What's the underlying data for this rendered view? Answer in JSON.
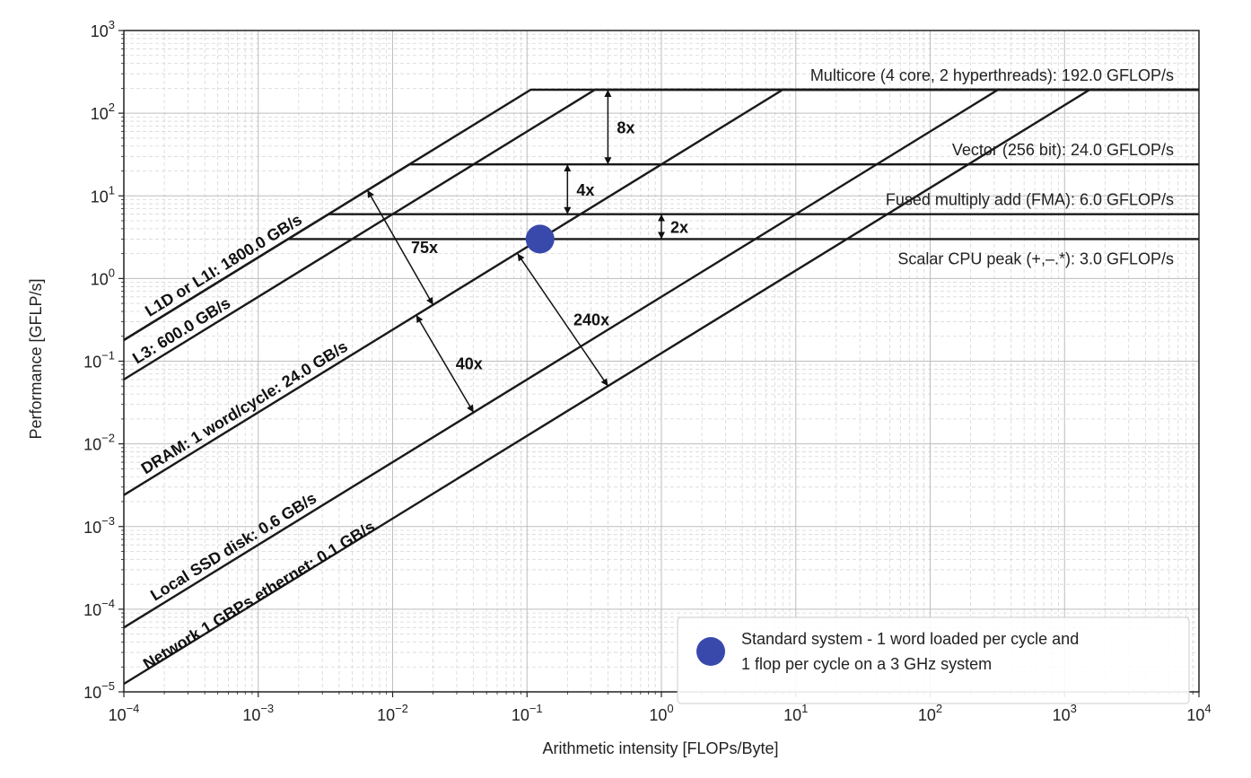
{
  "chart_data": {
    "type": "line",
    "xscale": "log",
    "yscale": "log",
    "xlim": [
      0.0001,
      10000
    ],
    "ylim": [
      1e-05,
      1000
    ],
    "xlabel": "Arithmetic intensity [FLOPs/Byte]",
    "ylabel": "Performance [GFLP/s]",
    "grid": true,
    "x_ticks": [
      {
        "value": 0.0001,
        "base": "10",
        "exp": "−4"
      },
      {
        "value": 0.001,
        "base": "10",
        "exp": "−3"
      },
      {
        "value": 0.01,
        "base": "10",
        "exp": "−2"
      },
      {
        "value": 0.1,
        "base": "10",
        "exp": "−1"
      },
      {
        "value": 1,
        "base": "10",
        "exp": "0"
      },
      {
        "value": 10,
        "base": "10",
        "exp": "1"
      },
      {
        "value": 100,
        "base": "10",
        "exp": "2"
      },
      {
        "value": 1000,
        "base": "10",
        "exp": "3"
      },
      {
        "value": 10000,
        "base": "10",
        "exp": "4"
      }
    ],
    "y_ticks": [
      {
        "value": 1e-05,
        "base": "10",
        "exp": "−5"
      },
      {
        "value": 0.0001,
        "base": "10",
        "exp": "−4"
      },
      {
        "value": 0.001,
        "base": "10",
        "exp": "−3"
      },
      {
        "value": 0.01,
        "base": "10",
        "exp": "−2"
      },
      {
        "value": 0.1,
        "base": "10",
        "exp": "−1"
      },
      {
        "value": 1,
        "base": "10",
        "exp": "0"
      },
      {
        "value": 10,
        "base": "10",
        "exp": "1"
      },
      {
        "value": 100,
        "base": "10",
        "exp": "2"
      },
      {
        "value": 1000,
        "base": "10",
        "exp": "3"
      }
    ],
    "ceilings": [
      {
        "label": "Multicore (4 core, 2 hyperthreads): 192.0 GFLOP/s",
        "value": 192.0
      },
      {
        "label": "Vector (256 bit): 24.0 GFLOP/s",
        "value": 24.0
      },
      {
        "label": "Fused multiply add (FMA): 6.0 GFLOP/s",
        "value": 6.0
      },
      {
        "label": "Scalar CPU peak (+,–.*): 3.0 GFLOP/s",
        "value": 3.0
      }
    ],
    "bandwidths": [
      {
        "label": "L1D or L1I: 1800.0 GB/s",
        "value": 1800.0
      },
      {
        "label": "L3: 600.0 GB/s",
        "value": 600.0
      },
      {
        "label": "DRAM: 1 word/cycle: 24.0 GB/s",
        "value": 24.0
      },
      {
        "label": "Local SSD disk: 0.6 GB/s",
        "value": 0.6
      },
      {
        "label": "Network 1 GBPs ethernet: 0.1 GB/s",
        "value": 0.1
      }
    ],
    "extra_roof_lines": [
      {
        "slope_gbs": 1800.0,
        "cap": 192.0
      },
      {
        "slope_gbs": 600.0,
        "cap": 192.0
      },
      {
        "slope_gbs": 24.0,
        "cap": 192.0
      },
      {
        "slope_gbs": 0.6,
        "cap": 192.0
      },
      {
        "slope_gbs": 0.125,
        "cap": 192.0
      },
      {
        "slope_gbs": 1800.0,
        "cap": 24.0
      },
      {
        "slope_gbs": 1800.0,
        "cap": 6.0
      },
      {
        "slope_gbs": 1800.0,
        "cap": 3.0
      }
    ],
    "ratios": [
      {
        "label": "8x",
        "x": 0.4,
        "y_low": 24.0,
        "y_high": 192.0
      },
      {
        "label": "4x",
        "x": 0.2,
        "y_low": 6.0,
        "y_high": 24.0
      },
      {
        "label": "2x",
        "x": 1.0,
        "y_low": 3.0,
        "y_high": 6.0
      },
      {
        "label": "75x",
        "x_start": 0.0065,
        "y_start": 11.7,
        "x_end": 0.02,
        "y_end": 0.48
      },
      {
        "label": "240x",
        "x_start": 0.085,
        "y_start": 2.0,
        "x_end": 0.4,
        "y_end": 0.05
      },
      {
        "label": "40x",
        "x_start": 0.015,
        "y_start": 0.36,
        "x_end": 0.04,
        "y_end": 0.024
      }
    ],
    "points": [
      {
        "x": 0.125,
        "y": 3.0,
        "color": "#3949ab"
      }
    ],
    "legend": {
      "placement": "lower-right",
      "line1": "Standard system - 1 word loaded per cycle and",
      "line2": "1 flop per cycle on a 3 GHz system",
      "marker_color": "#3949ab"
    }
  }
}
